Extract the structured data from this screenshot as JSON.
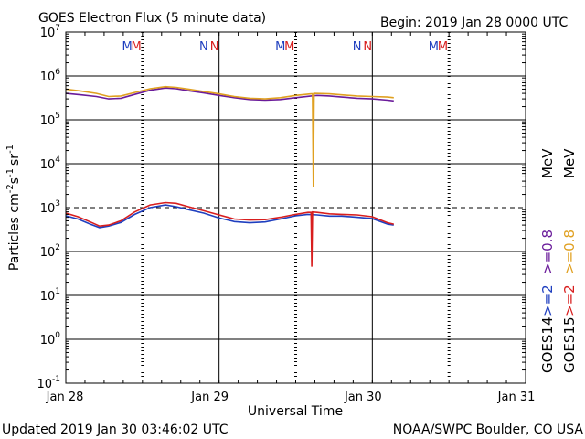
{
  "chart_data": {
    "type": "line",
    "title": "GOES Electron Flux (5 minute data)",
    "begin_label": "Begin: 2019 Jan 28 0000 UTC",
    "xlabel": "Universal Time",
    "ylabel_parts": {
      "base": "Particles cm",
      "exp1": "-2",
      "s": "s",
      "exp2": "-1",
      "sr": "sr",
      "exp3": "-1"
    },
    "yscale": "log",
    "ylim": [
      0.1,
      10000000
    ],
    "xlim": [
      0,
      3
    ],
    "x_unit": "days since 2019-01-28 00:00 UTC",
    "x_tick_labels": [
      "Jan 28",
      "Jan 29",
      "Jan 30",
      "Jan 31"
    ],
    "y_tick_labels": [
      {
        "base": "10",
        "exp": "-1"
      },
      {
        "base": "10",
        "exp": "0"
      },
      {
        "base": "10",
        "exp": "1"
      },
      {
        "base": "10",
        "exp": "2"
      },
      {
        "base": "10",
        "exp": "3"
      },
      {
        "base": "10",
        "exp": "4"
      },
      {
        "base": "10",
        "exp": "5"
      },
      {
        "base": "10",
        "exp": "6"
      },
      {
        "base": "10",
        "exp": "7"
      }
    ],
    "threshold": {
      "value": 1000,
      "style": "dashed"
    },
    "noon_markers": [
      0.5,
      1.5,
      2.5
    ],
    "m_markers": [
      {
        "x": 0.4,
        "color": "#1f3fbf",
        "text": "M"
      },
      {
        "x": 0.46,
        "color": "#d81e1e",
        "text": "M"
      },
      {
        "x": 1.4,
        "color": "#1f3fbf",
        "text": "M"
      },
      {
        "x": 1.46,
        "color": "#d81e1e",
        "text": "M"
      },
      {
        "x": 2.4,
        "color": "#1f3fbf",
        "text": "M"
      },
      {
        "x": 2.46,
        "color": "#d81e1e",
        "text": "M"
      }
    ],
    "n_markers": [
      {
        "x": 0.9,
        "color": "#1f3fbf",
        "text": "N"
      },
      {
        "x": 0.97,
        "color": "#d81e1e",
        "text": "N"
      },
      {
        "x": 1.9,
        "color": "#1f3fbf",
        "text": "N"
      },
      {
        "x": 1.97,
        "color": "#d81e1e",
        "text": "N"
      }
    ],
    "series": [
      {
        "name": "GOES14 >=0.8 MeV",
        "color": "#6a1b9a",
        "x": [
          0.0,
          0.1,
          0.2,
          0.28,
          0.36,
          0.45,
          0.55,
          0.65,
          0.72,
          0.8,
          0.9,
          1.0,
          1.1,
          1.2,
          1.3,
          1.4,
          1.5,
          1.6,
          1.64,
          1.72,
          1.8,
          1.9,
          2.0,
          2.1,
          2.14
        ],
        "values": [
          400000,
          370000,
          340000,
          300000,
          310000,
          380000,
          470000,
          530000,
          510000,
          460000,
          410000,
          360000,
          320000,
          290000,
          280000,
          290000,
          320000,
          350000,
          360000,
          350000,
          330000,
          310000,
          300000,
          280000,
          270000
        ]
      },
      {
        "name": "GOES15 >=0.8 MeV",
        "color": "#e0a020",
        "x": [
          0.0,
          0.1,
          0.2,
          0.28,
          0.36,
          0.45,
          0.55,
          0.65,
          0.72,
          0.8,
          0.9,
          1.0,
          1.1,
          1.2,
          1.3,
          1.4,
          1.5,
          1.6,
          1.61,
          1.615,
          1.62,
          1.72,
          1.8,
          1.9,
          2.0,
          2.1,
          2.14
        ],
        "values": [
          500000,
          450000,
          400000,
          340000,
          350000,
          420000,
          510000,
          570000,
          550000,
          500000,
          440000,
          390000,
          340000,
          310000,
          300000,
          320000,
          360000,
          390000,
          390000,
          3000,
          400000,
          390000,
          370000,
          350000,
          340000,
          330000,
          320000
        ]
      },
      {
        "name": "GOES14 >=2 MeV",
        "color": "#1f3fbf",
        "x": [
          0.0,
          0.08,
          0.16,
          0.22,
          0.28,
          0.36,
          0.45,
          0.55,
          0.65,
          0.72,
          0.8,
          0.9,
          1.0,
          1.1,
          1.2,
          1.3,
          1.4,
          1.5,
          1.58,
          1.64,
          1.72,
          1.8,
          1.9,
          2.0,
          2.1,
          2.14
        ],
        "values": [
          650,
          550,
          420,
          350,
          380,
          460,
          700,
          1000,
          1150,
          1050,
          900,
          750,
          580,
          480,
          450,
          470,
          550,
          650,
          700,
          680,
          640,
          640,
          600,
          560,
          420,
          400
        ]
      },
      {
        "name": "GOES15 >=2 MeV",
        "color": "#d81e1e",
        "x": [
          0.0,
          0.08,
          0.16,
          0.22,
          0.28,
          0.36,
          0.45,
          0.55,
          0.65,
          0.72,
          0.8,
          0.9,
          1.0,
          1.1,
          1.2,
          1.3,
          1.4,
          1.5,
          1.58,
          1.6,
          1.605,
          1.61,
          1.64,
          1.72,
          1.8,
          1.9,
          2.0,
          2.1,
          2.14
        ],
        "values": [
          750,
          620,
          470,
          380,
          400,
          500,
          800,
          1150,
          1300,
          1250,
          1050,
          850,
          680,
          550,
          520,
          530,
          600,
          700,
          780,
          780,
          45,
          800,
          780,
          720,
          700,
          680,
          620,
          450,
          420
        ]
      }
    ],
    "legend_right": [
      {
        "text": "GOES14",
        "color": "#000000"
      },
      {
        "text": ">=2",
        "color": "#1f3fbf"
      },
      {
        "text": ">=0.8",
        "color": "#6a1b9a"
      },
      {
        "text": "MeV",
        "color": "#000000"
      },
      {
        "text": "GOES15",
        "color": "#000000"
      },
      {
        "text": ">=2",
        "color": "#d81e1e"
      },
      {
        "text": ">=0.8",
        "color": "#e0a020"
      },
      {
        "text": "MeV",
        "color": "#000000"
      }
    ]
  },
  "footer": {
    "updated": "Updated 2019 Jan 30 03:46:02 UTC",
    "source": "NOAA/SWPC Boulder, CO USA"
  }
}
